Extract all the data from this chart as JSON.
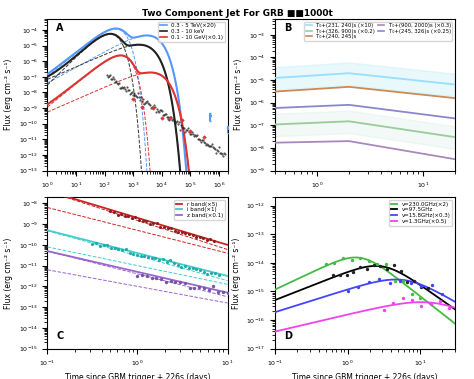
{
  "title": "Two Component Jet For GRB ■■1000t",
  "panel_A": {
    "label": "A",
    "legend": [
      {
        "label": "0.3 - 5 TeV(×20)",
        "color": "#5599ff",
        "lw": 1.5
      },
      {
        "label": "0.3 - 10 keV",
        "color": "#222222",
        "lw": 1.5
      },
      {
        "label": "0.1 - 10 GeV(×0.1)",
        "color": "#dd3333",
        "lw": 1.5
      }
    ],
    "ylabel": "Flux (erg cm⁻² s⁻¹)",
    "xlim_log": [
      0,
      6.3
    ],
    "ylim": [
      1e-13,
      0.0005
    ]
  },
  "panel_B": {
    "label": "B",
    "legend": [
      {
        "label": "T₀+(231, 240)s (×10)",
        "color": "#99ddff",
        "lw": 1.2
      },
      {
        "label": "T₀+(326, 900)s (×0.2)",
        "color": "#99cc99",
        "lw": 1.2
      },
      {
        "label": "T₀+(240, 245)s",
        "color": "#cc8855",
        "lw": 1.2
      },
      {
        "label": "T₀+(900, 2000)s (×0.3)",
        "color": "#aa88bb",
        "lw": 1.2
      },
      {
        "label": "T₀+(245, 326)s (×0.25)",
        "color": "#8888cc",
        "lw": 1.2
      }
    ],
    "ylabel": "Flux (erg cm⁻² s⁻¹)",
    "xlim": [
      0.4,
      20
    ],
    "ylim": [
      1e-09,
      0.005
    ]
  },
  "panel_C": {
    "label": "C",
    "legend": [
      {
        "label": "r band(×5)",
        "color": "#cc2222",
        "lw": 1.3
      },
      {
        "label": "i band(×1)",
        "color": "#44cccc",
        "lw": 1.3
      },
      {
        "label": "z band(×0.1)",
        "color": "#9966cc",
        "lw": 1.3
      }
    ],
    "ylabel": "Flux (erg cm⁻² s⁻¹)",
    "xlabel": "Time since GBM trigger + 226s (days)",
    "xlim": [
      0.1,
      10
    ],
    "ylim": [
      1e-15,
      2e-08
    ]
  },
  "panel_D": {
    "label": "D",
    "legend": [
      {
        "label": "ν=230.0GHz(×2)",
        "color": "#44bb44",
        "lw": 1.3
      },
      {
        "label": "ν=97.5GHz",
        "color": "#000000",
        "lw": 1.3
      },
      {
        "label": "ν=15.8GHz(×0.3)",
        "color": "#4444ff",
        "lw": 1.3
      },
      {
        "label": "ν=1.3GHz(×0.5)",
        "color": "#ee44ee",
        "lw": 1.3
      }
    ],
    "ylabel": "Flux (erg cm⁻² s⁻¹)",
    "xlabel": "Time since GBM trigger + 226s (days)",
    "xlim": [
      0.1,
      30
    ],
    "ylim": [
      1e-17,
      2e-12
    ]
  },
  "bg_color": "#ffffff",
  "fontsize_label": 5.5,
  "fontsize_tick": 4.5,
  "fontsize_legend": 4.0,
  "fontsize_panel": 7
}
